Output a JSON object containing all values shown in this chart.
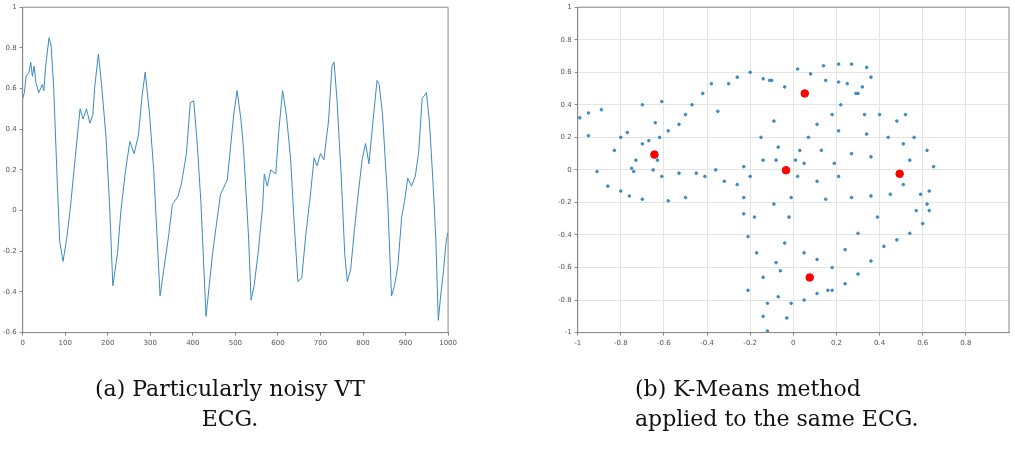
{
  "chart_data": [
    {
      "type": "line",
      "marker": "none",
      "line_style": "solid",
      "grid": false,
      "legend": false,
      "annotations": [
        "(a) Particularly noisy VT ECG."
      ],
      "xlim": [
        0,
        1000
      ],
      "xticks": [
        0,
        100,
        200,
        300,
        400,
        500,
        600,
        700,
        800,
        900,
        1000
      ],
      "ylim": [
        -0.6,
        1
      ],
      "yticks": [
        -0.6,
        -0.4,
        -0.2,
        0,
        0.2,
        0.4,
        0.6,
        0.8,
        1
      ],
      "series": [
        {
          "color": "#3b8bc2",
          "x": [
            0,
            4,
            8,
            15,
            19,
            23,
            27,
            31,
            38,
            46,
            50,
            54,
            62,
            67,
            73,
            81,
            87,
            95,
            104,
            112,
            123,
            135,
            142,
            150,
            158,
            165,
            169,
            178,
            185,
            196,
            204,
            212,
            223,
            231,
            242,
            252,
            262,
            272,
            281,
            288,
            298,
            308,
            323,
            331,
            342,
            352,
            365,
            373,
            385,
            394,
            402,
            410,
            419,
            431,
            438,
            446,
            454,
            465,
            481,
            496,
            504,
            513,
            519,
            531,
            537,
            544,
            554,
            564,
            568,
            575,
            583,
            595,
            602,
            611,
            620,
            630,
            639,
            647,
            656,
            666,
            676,
            685,
            692,
            700,
            708,
            719,
            727,
            732,
            739,
            749,
            757,
            763,
            771,
            780,
            787,
            798,
            806,
            814,
            823,
            833,
            838,
            846,
            858,
            867,
            874,
            882,
            891,
            898,
            905,
            914,
            923,
            931,
            939,
            949,
            956,
            964,
            971,
            977,
            982,
            989,
            995,
            999
          ],
          "values": [
            0.55,
            0.58,
            0.66,
            0.68,
            0.73,
            0.66,
            0.71,
            0.63,
            0.58,
            0.62,
            0.59,
            0.71,
            0.85,
            0.81,
            0.6,
            0.16,
            -0.15,
            -0.25,
            -0.13,
            0.01,
            0.25,
            0.5,
            0.45,
            0.5,
            0.43,
            0.47,
            0.6,
            0.77,
            0.63,
            0.36,
            0.04,
            -0.37,
            -0.21,
            0,
            0.2,
            0.34,
            0.28,
            0.37,
            0.57,
            0.68,
            0.48,
            0.2,
            -0.42,
            -0.3,
            -0.14,
            0.03,
            0.07,
            0.13,
            0.28,
            0.53,
            0.54,
            0.34,
            0.04,
            -0.52,
            -0.38,
            -0.22,
            -0.09,
            0.08,
            0.15,
            0.47,
            0.59,
            0.45,
            0.31,
            -0.13,
            -0.44,
            -0.37,
            -0.2,
            0.02,
            0.18,
            0.12,
            0.2,
            0.18,
            0.39,
            0.59,
            0.47,
            0.25,
            -0.09,
            -0.35,
            -0.33,
            -0.11,
            0.07,
            0.26,
            0.22,
            0.28,
            0.25,
            0.44,
            0.71,
            0.73,
            0.54,
            0.16,
            -0.21,
            -0.35,
            -0.29,
            -0.09,
            0.05,
            0.25,
            0.33,
            0.23,
            0.43,
            0.64,
            0.62,
            0.47,
            0.05,
            -0.42,
            -0.37,
            -0.27,
            -0.03,
            0.05,
            0.16,
            0.12,
            0.17,
            0.29,
            0.55,
            0.58,
            0.44,
            0.16,
            -0.13,
            -0.54,
            -0.43,
            -0.3,
            -0.16,
            -0.11
          ]
        }
      ]
    },
    {
      "type": "scatter",
      "marker": "circle",
      "grid": true,
      "legend": false,
      "annotations": [
        "(b) K-Means method applied to the same ECG."
      ],
      "xlim": [
        -1,
        1
      ],
      "xticks": [
        -1,
        -0.8,
        -0.6,
        -0.4,
        -0.2,
        0,
        0.2,
        0.4,
        0.6,
        0.8
      ],
      "ylim": [
        -1,
        1
      ],
      "yticks": [
        -1,
        -0.8,
        -0.6,
        -0.4,
        -0.2,
        0,
        0.2,
        0.4,
        0.6,
        0.8,
        1
      ],
      "series": [
        {
          "color": "#3b8bc2",
          "x": [
            -0.99,
            -0.95,
            -0.95,
            -0.89,
            -0.91,
            -0.86,
            -0.8,
            -0.8,
            -0.83,
            -0.77,
            -0.75,
            -0.74,
            -0.73,
            -0.76,
            -0.7,
            -0.7,
            -0.7,
            -0.67,
            -0.65,
            -0.64,
            -0.62,
            -0.63,
            -0.61,
            -0.61,
            -0.58,
            -0.58,
            -0.53,
            -0.53,
            -0.5,
            -0.5,
            -0.47,
            -0.45,
            -0.42,
            -0.41,
            -0.38,
            -0.36,
            -0.35,
            -0.32,
            -0.3,
            -0.26,
            -0.26,
            -0.23,
            -0.2,
            -0.2,
            -0.14,
            -0.11,
            -0.23,
            -0.21,
            -0.23,
            -0.21,
            -0.18,
            -0.17,
            -0.15,
            -0.14,
            -0.14,
            -0.12,
            -0.12,
            -0.14,
            -0.09,
            -0.09,
            -0.08,
            -0.1,
            -0.04,
            0.02,
            0.08,
            0.14,
            0.21,
            0.27,
            0.34,
            0.36,
            0.32,
            0.29,
            0.25,
            0.21,
            0.15,
            0.22,
            0.18,
            0.11,
            0.07,
            0.03,
            0.01,
            -0.08,
            -0.07,
            0.33,
            0.4,
            0.48,
            0.52,
            0.56,
            0.62,
            0.65,
            0.63,
            0.63,
            0.6,
            0.54,
            0.48,
            0.42,
            0.36,
            0.3,
            0.24,
            0.18,
            0.11,
            0.05,
            -0.01,
            -0.07,
            -0.03,
            -0.06,
            -0.04,
            -0.02,
            -0.01,
            0.02,
            0.11,
            0.21,
            0.15,
            0.27,
            0.36,
            0.45,
            0.51,
            0.54,
            0.51,
            0.44,
            0.34,
            0.27,
            0.19,
            0.13,
            0.05,
            0.36,
            0.18,
            0.24,
            0.3,
            0.39,
            0.11,
            0.05,
            0.21,
            0.3,
            0.16,
            0.59,
            0.57,
            0.62
          ],
          "values": [
            0.32,
            0.35,
            0.21,
            0.37,
            -0.01,
            -0.1,
            0.2,
            -0.13,
            0.12,
            0.23,
            0.01,
            -0.01,
            0.06,
            -0.16,
            0.16,
            -0.18,
            0.4,
            0.18,
            0,
            0.29,
            0.2,
            0.06,
            0.42,
            -0.04,
            0.24,
            -0.19,
            0.28,
            -0.02,
            0.34,
            -0.17,
            0.4,
            -0.02,
            0.47,
            -0.04,
            0.53,
            0,
            0.36,
            -0.07,
            0.53,
            -0.09,
            0.57,
            0.02,
            -0.04,
            0.6,
            0.56,
            0.55,
            -0.17,
            -0.41,
            -0.27,
            -0.74,
            -0.29,
            -0.51,
            0.2,
            0.06,
            -0.66,
            -0.99,
            -0.82,
            -0.9,
            0.3,
            -0.21,
            -0.57,
            0.55,
            0.51,
            0.62,
            0.59,
            0.64,
            0.65,
            0.65,
            0.63,
            0.57,
            0.51,
            0.47,
            0.53,
            0.54,
            0.55,
            0.4,
            0.34,
            0.28,
            0.2,
            0.12,
            0.06,
            0.06,
            0.14,
            0.34,
            0.34,
            0.3,
            0.34,
            0.2,
            0.12,
            0.02,
            -0.13,
            -0.25,
            -0.33,
            -0.39,
            -0.43,
            -0.47,
            -0.56,
            -0.64,
            -0.7,
            -0.74,
            -0.76,
            -0.8,
            -0.82,
            -0.78,
            -0.91,
            -0.62,
            -0.45,
            -0.29,
            -0.17,
            -0.04,
            -0.07,
            -0.04,
            -0.18,
            -0.17,
            -0.16,
            -0.15,
            -0.09,
            0.06,
            0.16,
            0.2,
            0.22,
            0.1,
            0.04,
            0.12,
            0.04,
            0.08,
            -0.6,
            -0.49,
            -0.39,
            -0.29,
            -0.55,
            -0.51,
            0.24,
            0.47,
            -0.74,
            -0.15,
            -0.25,
            -0.21
          ]
        },
        {
          "color": "#ff0000",
          "x": [
            -0.644,
            0.053,
            -0.034,
            0.493,
            0.076
          ],
          "values": [
            0.094,
            0.47,
            -0.002,
            -0.024,
            -0.661
          ]
        }
      ]
    }
  ]
}
